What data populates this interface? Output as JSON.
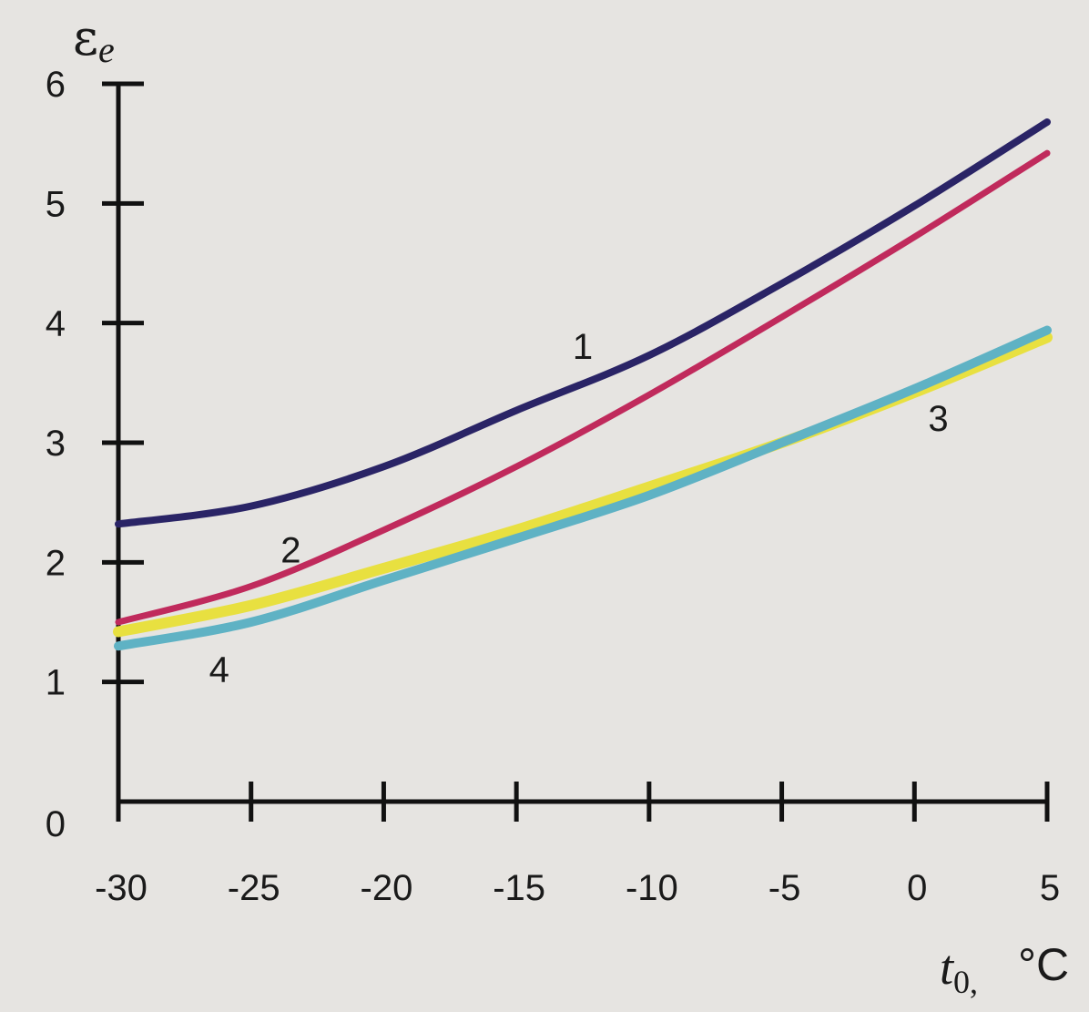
{
  "chart_data": {
    "type": "line",
    "ylabel_main": "ε",
    "ylabel_sub": "e",
    "xlabel_main": "t",
    "xlabel_sub": "0,",
    "xlabel_unit": "°C",
    "xlim": [
      -30,
      5
    ],
    "ylim": [
      0,
      6
    ],
    "grid": false,
    "x_ticks": [
      -30,
      -25,
      -20,
      -15,
      -10,
      -5,
      0,
      5
    ],
    "x_tick_labels": [
      "-30",
      "-25",
      "-20",
      "-15",
      "-10",
      "-5",
      "0",
      "5"
    ],
    "y_ticks": [
      0,
      1,
      2,
      3,
      4,
      5,
      6
    ],
    "y_tick_labels": [
      "0",
      "1",
      "2",
      "3",
      "4",
      "5",
      "6"
    ],
    "series": [
      {
        "name": "1",
        "color": "#2a2466",
        "x": [
          -30,
          -25,
          -20,
          -15,
          -10,
          -5,
          0,
          5
        ],
        "y": [
          2.32,
          2.47,
          2.8,
          3.27,
          3.73,
          4.33,
          4.98,
          5.68
        ]
      },
      {
        "name": "2",
        "color": "#c02a5c",
        "x": [
          -30,
          -25,
          -20,
          -15,
          -10,
          -5,
          0,
          5
        ],
        "y": [
          1.5,
          1.8,
          2.27,
          2.8,
          3.4,
          4.05,
          4.72,
          5.42
        ]
      },
      {
        "name": "3",
        "color": "#e8e040",
        "x": [
          -30,
          -25,
          -20,
          -15,
          -10,
          -5,
          0,
          5
        ],
        "y": [
          1.42,
          1.64,
          1.95,
          2.27,
          2.63,
          3.0,
          3.42,
          3.88
        ]
      },
      {
        "name": "4",
        "color": "#5fb2c4",
        "x": [
          -30,
          -25,
          -20,
          -15,
          -10,
          -5,
          0,
          5
        ],
        "y": [
          1.3,
          1.5,
          1.85,
          2.2,
          2.56,
          3.0,
          3.45,
          3.94
        ]
      }
    ],
    "annotations": [
      {
        "text": "1",
        "x": -12.5,
        "y": 3.7
      },
      {
        "text": "2",
        "x": -23.5,
        "y": 2.0
      },
      {
        "text": "3",
        "x": 0.9,
        "y": 3.1
      },
      {
        "text": "4",
        "x": -26.2,
        "y": 1.0
      }
    ]
  }
}
